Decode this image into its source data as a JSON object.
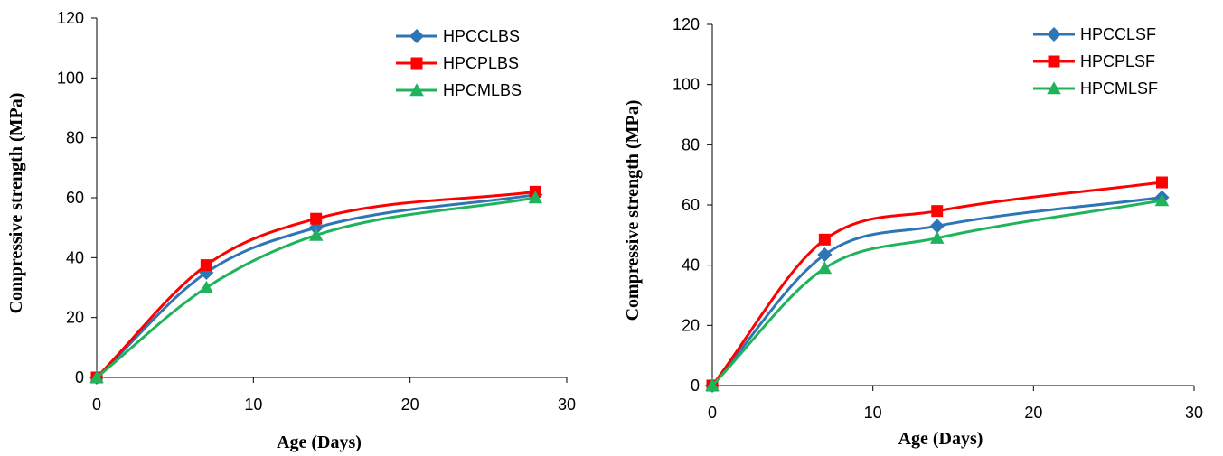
{
  "chart_data": [
    {
      "type": "line",
      "xlabel": "Age (Days)",
      "ylabel": "Compressive strength (MPa)",
      "xlim": [
        0,
        30
      ],
      "ylim": [
        0,
        120
      ],
      "xticks": [
        0,
        10,
        20,
        30
      ],
      "yticks": [
        0,
        20,
        40,
        60,
        80,
        100,
        120
      ],
      "grid": false,
      "legend_position": "top-right",
      "series": [
        {
          "name": "HPCCLBS",
          "color": "#2E75B6",
          "marker": "diamond",
          "x": [
            0,
            7,
            14,
            28
          ],
          "y": [
            0,
            35,
            50,
            61
          ]
        },
        {
          "name": "HPCPLBS",
          "color": "#FF0000",
          "marker": "square",
          "x": [
            0,
            7,
            14,
            28
          ],
          "y": [
            0,
            37.5,
            53,
            62
          ]
        },
        {
          "name": "HPCMLBS",
          "color": "#21B35C",
          "marker": "triangle",
          "x": [
            0,
            7,
            14,
            28
          ],
          "y": [
            0,
            30,
            47.5,
            60
          ]
        }
      ]
    },
    {
      "type": "line",
      "xlabel": "Age (Days)",
      "ylabel": "Compressive strength (MPa)",
      "xlim": [
        0,
        30
      ],
      "ylim": [
        0,
        120
      ],
      "xticks": [
        0,
        10,
        20,
        30
      ],
      "yticks": [
        0,
        20,
        40,
        60,
        80,
        100,
        120
      ],
      "grid": false,
      "legend_position": "top-right",
      "series": [
        {
          "name": "HPCCLSF",
          "color": "#2E75B6",
          "marker": "diamond",
          "x": [
            0,
            7,
            14,
            28
          ],
          "y": [
            0,
            43.5,
            53,
            62.5
          ]
        },
        {
          "name": "HPCPLSF",
          "color": "#FF0000",
          "marker": "square",
          "x": [
            0,
            7,
            14,
            28
          ],
          "y": [
            0,
            48.5,
            58,
            67.5
          ]
        },
        {
          "name": "HPCMLSF",
          "color": "#21B35C",
          "marker": "triangle",
          "x": [
            0,
            7,
            14,
            28
          ],
          "y": [
            0,
            39,
            49,
            61.5
          ]
        }
      ]
    }
  ]
}
